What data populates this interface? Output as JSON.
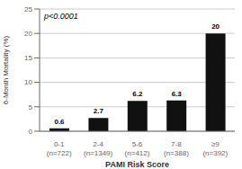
{
  "chart_data": {
    "type": "bar",
    "categories": [
      "0-1\n(n=722)",
      "2-4\n(n=1349)",
      "5-6\n(n=412)",
      "7-8\n(n=388)",
      "≥9\n(n=392)"
    ],
    "values": [
      0.6,
      2.7,
      6.2,
      6.3,
      20
    ],
    "color": "#111111",
    "xlabel": "PAMI Risk Score",
    "ylabel": "6-Month Mortality (%)",
    "ylim": [
      0,
      25
    ],
    "yticks": [
      0,
      5,
      10,
      15,
      20,
      25
    ],
    "annotation": "p<0.0001",
    "grid": true,
    "data_labels": true
  }
}
